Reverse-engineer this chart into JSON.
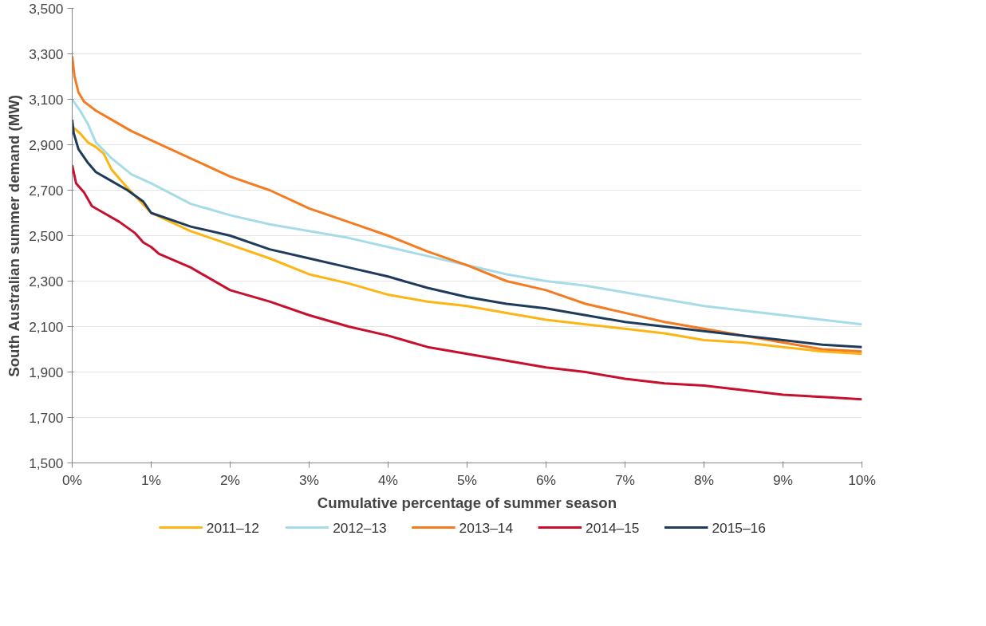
{
  "chart_data": {
    "type": "line",
    "xlabel": "Cumulative percentage of summer season",
    "ylabel": "South Australian summer demand (MW)",
    "xlim": [
      0,
      10
    ],
    "ylim": [
      1500,
      3500
    ],
    "xticks": [
      {
        "value": 0,
        "label": "0%"
      },
      {
        "value": 1,
        "label": "1%"
      },
      {
        "value": 2,
        "label": "2%"
      },
      {
        "value": 3,
        "label": "3%"
      },
      {
        "value": 4,
        "label": "4%"
      },
      {
        "value": 5,
        "label": "5%"
      },
      {
        "value": 6,
        "label": "6%"
      },
      {
        "value": 7,
        "label": "7%"
      },
      {
        "value": 8,
        "label": "8%"
      },
      {
        "value": 9,
        "label": "9%"
      },
      {
        "value": 10,
        "label": "10%"
      }
    ],
    "yticks": [
      {
        "value": 1500,
        "label": "1,500"
      },
      {
        "value": 1700,
        "label": "1,700"
      },
      {
        "value": 1900,
        "label": "1,900"
      },
      {
        "value": 2100,
        "label": "2,100"
      },
      {
        "value": 2300,
        "label": "2,300"
      },
      {
        "value": 2500,
        "label": "2,500"
      },
      {
        "value": 2700,
        "label": "2,700"
      },
      {
        "value": 2900,
        "label": "2,900"
      },
      {
        "value": 3100,
        "label": "3,100"
      },
      {
        "value": 3300,
        "label": "3,300"
      },
      {
        "value": 3500,
        "label": "3,500"
      }
    ],
    "grid": "y",
    "legend": "bottom",
    "marker": "none",
    "line_style": "solid",
    "series": [
      {
        "name": "2011–12",
        "color": "#fdb515",
        "x": [
          0,
          0.1,
          0.2,
          0.3,
          0.4,
          0.5,
          0.7,
          1,
          1.5,
          2,
          2.5,
          3,
          3.5,
          4,
          4.5,
          5,
          5.5,
          6,
          6.5,
          7,
          7.5,
          8,
          8.5,
          9,
          9.5,
          10
        ],
        "values": [
          2980,
          2950,
          2910,
          2890,
          2860,
          2790,
          2710,
          2600,
          2520,
          2460,
          2400,
          2330,
          2290,
          2240,
          2210,
          2190,
          2160,
          2130,
          2110,
          2090,
          2070,
          2040,
          2030,
          2010,
          1990,
          1980
        ]
      },
      {
        "name": "2012–13",
        "color": "#a6dbe8",
        "x": [
          0,
          0.1,
          0.2,
          0.3,
          0.5,
          0.75,
          1,
          1.5,
          2,
          2.5,
          3,
          3.5,
          4,
          4.5,
          5,
          5.5,
          6,
          6.5,
          7,
          7.5,
          8,
          8.5,
          9,
          9.5,
          10
        ],
        "values": [
          3100,
          3050,
          2990,
          2910,
          2840,
          2770,
          2730,
          2640,
          2590,
          2550,
          2520,
          2490,
          2450,
          2410,
          2370,
          2330,
          2300,
          2280,
          2250,
          2220,
          2190,
          2170,
          2150,
          2130,
          2110
        ]
      },
      {
        "name": "2013–14",
        "color": "#f47b20",
        "x": [
          0,
          0.03,
          0.08,
          0.15,
          0.3,
          0.5,
          0.75,
          1,
          1.5,
          2,
          2.5,
          3,
          3.5,
          4,
          4.5,
          5,
          5.5,
          6,
          6.5,
          7,
          7.5,
          8,
          8.5,
          9,
          9.5,
          10
        ],
        "values": [
          3290,
          3200,
          3130,
          3090,
          3050,
          3010,
          2960,
          2920,
          2840,
          2760,
          2700,
          2620,
          2560,
          2500,
          2430,
          2370,
          2300,
          2260,
          2200,
          2160,
          2120,
          2090,
          2060,
          2030,
          2000,
          1990
        ]
      },
      {
        "name": "2014–15",
        "color": "#c8102e",
        "x": [
          0,
          0.05,
          0.15,
          0.25,
          0.4,
          0.6,
          0.8,
          0.9,
          1,
          1.1,
          1.5,
          2,
          2.5,
          3,
          3.5,
          4,
          4.5,
          5,
          5.5,
          6,
          6.5,
          7,
          7.5,
          8,
          8.5,
          9,
          9.5,
          10
        ],
        "values": [
          2810,
          2730,
          2690,
          2630,
          2600,
          2560,
          2510,
          2470,
          2450,
          2420,
          2360,
          2260,
          2210,
          2150,
          2100,
          2060,
          2010,
          1980,
          1950,
          1920,
          1900,
          1870,
          1850,
          1840,
          1820,
          1800,
          1790,
          1780
        ]
      },
      {
        "name": "2015–16",
        "color": "#1f3b5c",
        "x": [
          0,
          0.02,
          0.08,
          0.2,
          0.3,
          0.5,
          0.7,
          0.9,
          1,
          1.5,
          2,
          2.5,
          3,
          3.5,
          4,
          4.5,
          5,
          5.5,
          6,
          6.5,
          7,
          7.5,
          8,
          8.5,
          9,
          9.5,
          10
        ],
        "values": [
          3010,
          2950,
          2880,
          2820,
          2780,
          2740,
          2700,
          2650,
          2600,
          2540,
          2500,
          2440,
          2400,
          2360,
          2320,
          2270,
          2230,
          2200,
          2180,
          2150,
          2120,
          2100,
          2080,
          2060,
          2040,
          2020,
          2010
        ]
      }
    ]
  }
}
